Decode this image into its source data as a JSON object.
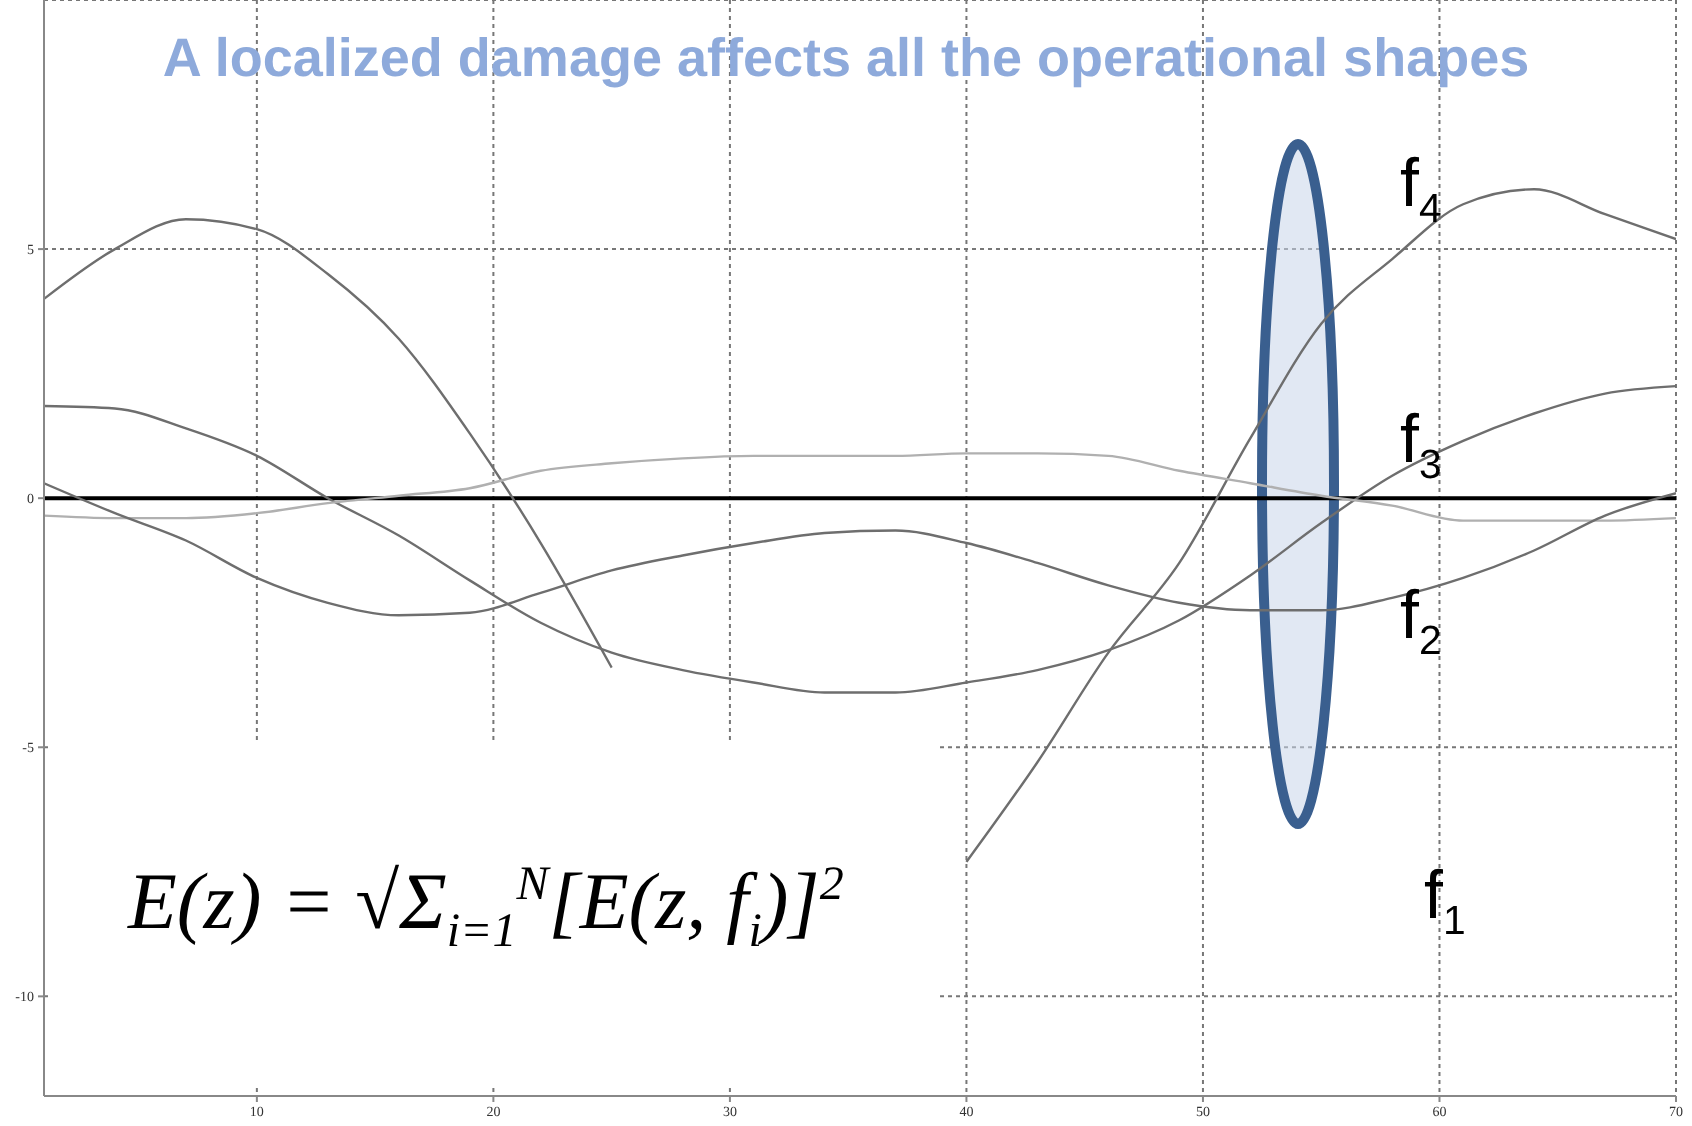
{
  "chart_data": {
    "type": "line",
    "title": "A localized damage affects all the operational shapes",
    "x": [
      1,
      4,
      7,
      10,
      13,
      16,
      19,
      22,
      25,
      28,
      31,
      34,
      37,
      40,
      43,
      46,
      49,
      52,
      55,
      58,
      61,
      64,
      67,
      70
    ],
    "series": [
      {
        "color": "#6e6e6e",
        "values": [
          4.0,
          5.0,
          5.6,
          5.4,
          4.5,
          3.2,
          1.3,
          -0.9,
          -3.4,
          null,
          null,
          null,
          null,
          -7.3,
          -5.3,
          -3.1,
          -1.3,
          1.2,
          3.5,
          4.8,
          5.9,
          6.2,
          5.7,
          5.2
        ]
      },
      {
        "color": "#6e6e6e",
        "values": [
          1.85,
          1.8,
          1.4,
          0.85,
          0,
          -0.75,
          -1.65,
          -2.5,
          -3.1,
          -3.45,
          -3.7,
          -3.9,
          -3.9,
          -3.7,
          -3.45,
          -3.05,
          -2.45,
          -1.55,
          -0.5,
          0.45,
          1.15,
          1.7,
          2.1,
          2.25
        ]
      },
      {
        "color": "#b0b0b0",
        "values": [
          -0.35,
          -0.4,
          -0.4,
          -0.3,
          -0.1,
          0.05,
          0.2,
          0.55,
          0.7,
          0.8,
          0.85,
          0.85,
          0.85,
          0.9,
          0.9,
          0.85,
          0.55,
          0.3,
          0.05,
          -0.15,
          -0.45,
          -0.45,
          -0.45,
          -0.4
        ]
      },
      {
        "color": "#6e6e6e",
        "values": [
          0.3,
          -0.3,
          -0.85,
          -1.6,
          -2.1,
          -2.35,
          -2.3,
          -1.9,
          -1.45,
          -1.15,
          -0.9,
          -0.7,
          -0.65,
          -0.9,
          -1.3,
          -1.75,
          -2.1,
          -2.25,
          -2.25,
          -2.0,
          -1.6,
          -1.05,
          -0.35,
          0.1
        ]
      }
    ],
    "xlim": [
      1,
      70
    ],
    "xticks": [
      10,
      20,
      30,
      40,
      50,
      60,
      70
    ],
    "ylim": [
      -12,
      10
    ],
    "yticks": [
      -10,
      -5,
      0,
      5
    ],
    "grid": true,
    "legend": false,
    "marker": "none",
    "line_style": "solid",
    "ref_lines": [
      {
        "axis": "y",
        "value": 0,
        "color": "#000000"
      }
    ],
    "annotations": [
      "f$_{4}$",
      "f$_{3}$",
      "f$_{2}$",
      "f$_{1}$",
      "E(z) = √Σ$_{i=1}$$^{N}$[E(z, f$_{i}$)]$^{2}$"
    ]
  }
}
